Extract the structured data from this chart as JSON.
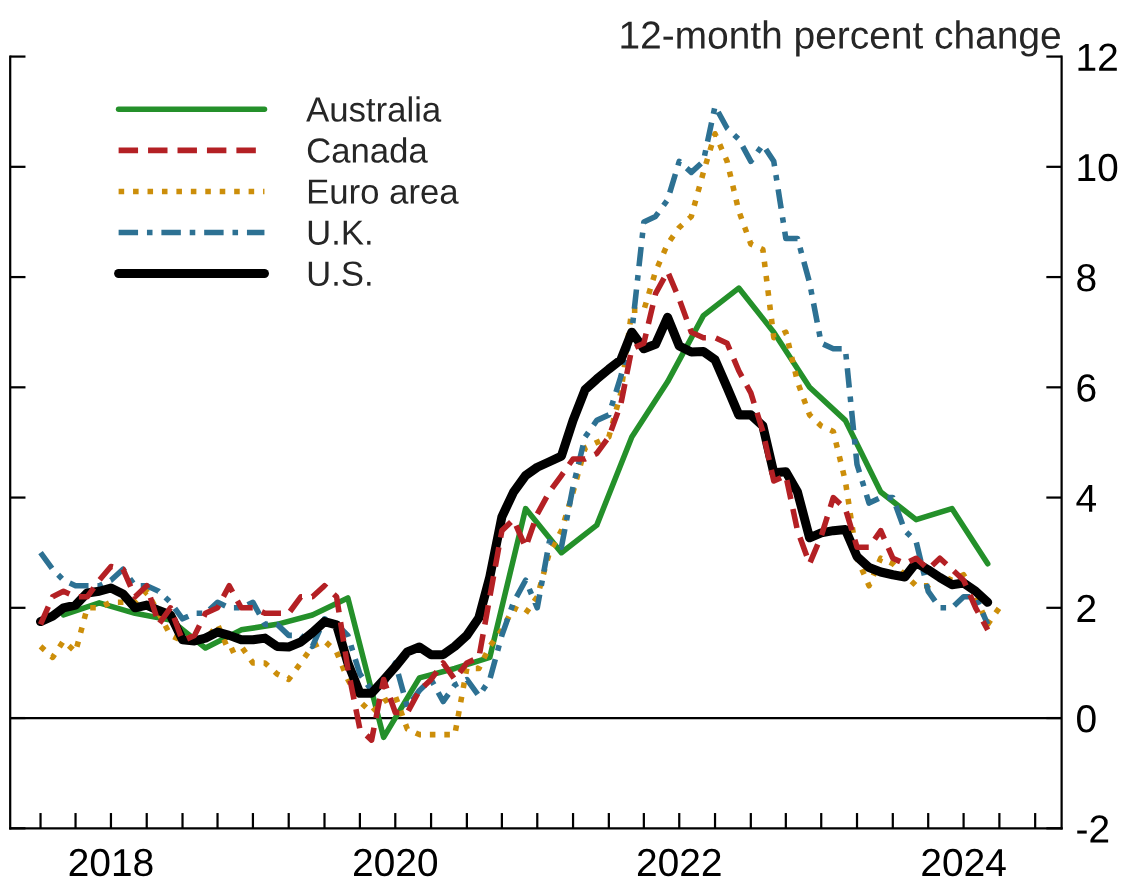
{
  "chart_data": {
    "type": "line",
    "ylabel": "12-month percent change",
    "x": [
      "2018-01",
      "2018-02",
      "2018-03",
      "2018-04",
      "2018-05",
      "2018-06",
      "2018-07",
      "2018-08",
      "2018-09",
      "2018-10",
      "2018-11",
      "2018-12",
      "2019-01",
      "2019-02",
      "2019-03",
      "2019-04",
      "2019-05",
      "2019-06",
      "2019-07",
      "2019-08",
      "2019-09",
      "2019-10",
      "2019-11",
      "2019-12",
      "2020-01",
      "2020-02",
      "2020-03",
      "2020-04",
      "2020-05",
      "2020-06",
      "2020-07",
      "2020-08",
      "2020-09",
      "2020-10",
      "2020-11",
      "2020-12",
      "2021-01",
      "2021-02",
      "2021-03",
      "2021-04",
      "2021-05",
      "2021-06",
      "2021-07",
      "2021-08",
      "2021-09",
      "2021-10",
      "2021-11",
      "2021-12",
      "2022-01",
      "2022-02",
      "2022-03",
      "2022-04",
      "2022-05",
      "2022-06",
      "2022-07",
      "2022-08",
      "2022-09",
      "2022-10",
      "2022-11",
      "2022-12",
      "2023-01",
      "2023-02",
      "2023-03",
      "2023-04",
      "2023-05",
      "2023-06",
      "2023-07",
      "2023-08",
      "2023-09",
      "2023-10",
      "2023-11",
      "2023-12",
      "2024-01",
      "2024-02",
      "2024-03",
      "2024-04",
      "2024-05",
      "2024-06",
      "2024-07",
      "2024-08",
      "2024-09",
      "2024-10"
    ],
    "series": [
      {
        "name": "Australia",
        "color": "#24902a",
        "line_style": "solid",
        "x": [
          "2018-03",
          "2018-06",
          "2018-09",
          "2018-12",
          "2019-03",
          "2019-06",
          "2019-09",
          "2019-12",
          "2020-03",
          "2020-06",
          "2020-09",
          "2020-12",
          "2021-03",
          "2021-06",
          "2021-09",
          "2021-12",
          "2022-03",
          "2022-06",
          "2022-09",
          "2022-12",
          "2023-03",
          "2023-06",
          "2023-09",
          "2023-12",
          "2024-03",
          "2024-06",
          "2024-09"
        ],
        "values": [
          1.87,
          2.09,
          1.9,
          1.78,
          1.27,
          1.6,
          1.7,
          1.87,
          2.18,
          -0.35,
          0.73,
          0.9,
          1.1,
          3.8,
          3.0,
          3.5,
          5.1,
          6.1,
          7.3,
          7.8,
          7.0,
          6.0,
          5.4,
          4.1,
          3.6,
          3.8,
          2.8
        ]
      },
      {
        "name": "Canada",
        "color": "#b42024",
        "line_style": "dashed",
        "values": [
          1.7,
          2.2,
          2.3,
          2.2,
          2.2,
          2.5,
          2.75,
          2.7,
          2.2,
          2.4,
          1.7,
          2.0,
          1.4,
          1.5,
          1.9,
          2.0,
          2.4,
          2.0,
          2.0,
          1.9,
          1.9,
          1.9,
          2.2,
          2.2,
          2.4,
          2.2,
          0.9,
          -0.2,
          -0.4,
          0.7,
          0.1,
          0.1,
          0.5,
          0.7,
          1.0,
          0.7,
          1.0,
          1.1,
          2.2,
          3.4,
          3.6,
          3.1,
          3.7,
          4.1,
          4.4,
          4.7,
          4.7,
          4.8,
          5.1,
          5.7,
          6.7,
          6.8,
          7.7,
          8.1,
          7.6,
          7.0,
          6.9,
          6.9,
          6.8,
          6.3,
          5.9,
          5.2,
          4.3,
          4.4,
          3.4,
          2.8,
          3.3,
          4.0,
          3.8,
          3.1,
          3.1,
          3.4,
          2.9,
          2.8,
          2.9,
          2.7,
          2.9,
          2.7,
          2.5,
          2.0,
          1.6,
          null
        ]
      },
      {
        "name": "Euro area",
        "color": "#cc8e0a",
        "line_style": "dotted",
        "values": [
          1.3,
          1.1,
          1.4,
          1.2,
          2.0,
          2.0,
          2.1,
          2.1,
          2.1,
          2.3,
          1.9,
          1.5,
          1.4,
          1.5,
          1.4,
          1.7,
          1.2,
          1.3,
          1.0,
          1.0,
          0.8,
          0.7,
          1.0,
          1.3,
          1.4,
          1.2,
          0.7,
          0.3,
          0.1,
          0.3,
          0.4,
          -0.2,
          -0.3,
          -0.3,
          -0.3,
          -0.3,
          0.9,
          0.9,
          1.3,
          1.6,
          2.0,
          1.9,
          2.2,
          3.0,
          3.4,
          4.1,
          4.9,
          5.0,
          5.1,
          5.9,
          7.4,
          7.4,
          8.1,
          8.6,
          8.9,
          9.1,
          9.9,
          10.6,
          10.1,
          9.2,
          8.6,
          8.5,
          6.9,
          7.0,
          6.1,
          5.5,
          5.3,
          5.2,
          4.3,
          2.9,
          2.4,
          2.9,
          2.8,
          2.6,
          2.4,
          2.4,
          2.6,
          2.5,
          2.6,
          2.2,
          1.7,
          2.0
        ]
      },
      {
        "name": "U.K.",
        "color": "#2d7193",
        "line_style": "dashdot",
        "values": [
          3.0,
          2.7,
          2.5,
          2.4,
          2.4,
          2.4,
          2.5,
          2.7,
          2.4,
          2.4,
          2.3,
          2.1,
          1.8,
          1.9,
          1.9,
          2.1,
          2.0,
          2.0,
          2.1,
          1.7,
          1.7,
          1.5,
          1.5,
          1.3,
          1.8,
          1.7,
          1.5,
          0.8,
          0.5,
          0.6,
          1.0,
          0.2,
          0.5,
          0.7,
          0.3,
          0.6,
          0.7,
          0.4,
          0.7,
          1.5,
          2.1,
          2.5,
          2.0,
          3.2,
          3.1,
          4.2,
          5.1,
          5.4,
          5.5,
          6.2,
          7.0,
          9.0,
          9.1,
          9.4,
          10.1,
          9.9,
          10.1,
          11.1,
          10.7,
          10.5,
          10.1,
          10.4,
          10.1,
          8.7,
          8.7,
          7.9,
          6.8,
          6.7,
          6.7,
          4.6,
          3.9,
          4.0,
          4.0,
          3.4,
          3.2,
          2.3,
          2.0,
          2.0,
          2.2,
          2.2,
          1.7,
          null
        ]
      },
      {
        "name": "U.S.",
        "color": "#000000",
        "line_style": "solid",
        "values": [
          1.75,
          1.85,
          2.0,
          2.05,
          2.27,
          2.3,
          2.36,
          2.25,
          2.0,
          2.05,
          1.95,
          1.87,
          1.42,
          1.4,
          1.45,
          1.56,
          1.5,
          1.42,
          1.42,
          1.45,
          1.3,
          1.29,
          1.38,
          1.55,
          1.75,
          1.69,
          1.0,
          0.45,
          0.45,
          0.69,
          0.93,
          1.2,
          1.29,
          1.15,
          1.15,
          1.3,
          1.5,
          1.82,
          2.56,
          3.65,
          4.1,
          4.4,
          4.55,
          4.65,
          4.75,
          5.4,
          5.96,
          6.15,
          6.33,
          6.5,
          7.0,
          6.7,
          6.78,
          7.27,
          6.75,
          6.64,
          6.65,
          6.5,
          6.0,
          5.5,
          5.5,
          5.3,
          4.45,
          4.47,
          4.1,
          3.27,
          3.36,
          3.4,
          3.42,
          2.93,
          2.73,
          2.65,
          2.6,
          2.56,
          2.82,
          2.69,
          2.55,
          2.42,
          2.45,
          2.3,
          2.1,
          null
        ]
      }
    ],
    "xlim": [
      "2017-10-15",
      "2025-03-10"
    ],
    "xticks": [
      {
        "value": "2018-01",
        "label": null
      },
      {
        "value": "2018-04",
        "label": null
      },
      {
        "value": "2018-07",
        "label": "2018"
      },
      {
        "value": "2018-10",
        "label": null
      },
      {
        "value": "2019-01",
        "label": null
      },
      {
        "value": "2019-04",
        "label": null
      },
      {
        "value": "2019-07",
        "label": null
      },
      {
        "value": "2019-10",
        "label": null
      },
      {
        "value": "2020-01",
        "label": null
      },
      {
        "value": "2020-04",
        "label": null
      },
      {
        "value": "2020-07",
        "label": "2020"
      },
      {
        "value": "2020-10",
        "label": null
      },
      {
        "value": "2021-01",
        "label": null
      },
      {
        "value": "2021-04",
        "label": null
      },
      {
        "value": "2021-07",
        "label": null
      },
      {
        "value": "2021-10",
        "label": null
      },
      {
        "value": "2022-01",
        "label": null
      },
      {
        "value": "2022-04",
        "label": null
      },
      {
        "value": "2022-07",
        "label": "2022"
      },
      {
        "value": "2022-10",
        "label": null
      },
      {
        "value": "2023-01",
        "label": null
      },
      {
        "value": "2023-04",
        "label": null
      },
      {
        "value": "2023-07",
        "label": null
      },
      {
        "value": "2023-10",
        "label": null
      },
      {
        "value": "2024-01",
        "label": null
      },
      {
        "value": "2024-04",
        "label": null
      },
      {
        "value": "2024-07",
        "label": "2024"
      },
      {
        "value": "2024-10",
        "label": null
      },
      {
        "value": "2025-01",
        "label": null
      }
    ],
    "ylim": [
      -2,
      12
    ],
    "yticks": [
      -2,
      0,
      2,
      4,
      6,
      8,
      10,
      12
    ],
    "ref_lines": [
      {
        "axis": "y",
        "value": 0,
        "color": "#000000"
      }
    ],
    "grid": false,
    "legend": "top left",
    "marker": "none"
  }
}
